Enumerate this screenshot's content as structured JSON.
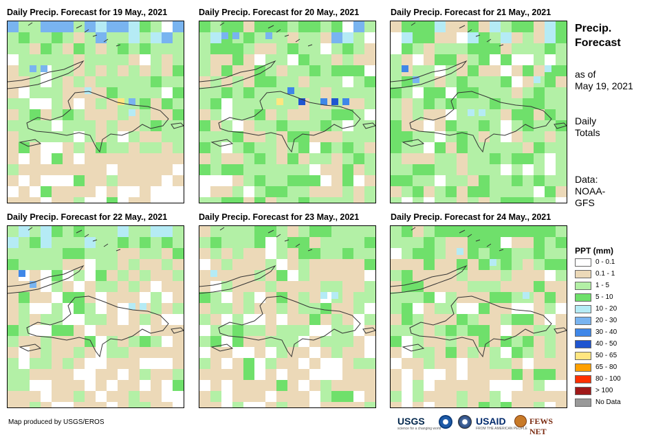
{
  "panels": [
    {
      "title": "Daily Precip. Forecast for 19 May., 2021"
    },
    {
      "title": "Daily Precip. Forecast for 20 May., 2021"
    },
    {
      "title": "Daily Precip. Forecast for 21 May., 2021"
    },
    {
      "title": "Daily Precip. Forecast for 22 May., 2021"
    },
    {
      "title": "Daily Precip. Forecast for 23 May., 2021"
    },
    {
      "title": "Daily Precip. Forecast for 24 May., 2021"
    }
  ],
  "sidebar": {
    "title_line1": "Precip.",
    "title_line2": "Forecast",
    "asof_line1": "as of",
    "asof_line2": "May 19, 2021",
    "daily_line1": "Daily",
    "daily_line2": "Totals",
    "data_line1": "Data:",
    "data_line2": "NOAA-",
    "data_line3": "GFS"
  },
  "legend": {
    "title": "PPT (mm)",
    "items": [
      {
        "label": "0 - 0.1",
        "color": "#ffffff"
      },
      {
        "label": "0.1 - 1",
        "color": "#ecd9b8"
      },
      {
        "label": "1 - 5",
        "color": "#b3f0a6"
      },
      {
        "label": "5 - 10",
        "color": "#6fe06b"
      },
      {
        "label": "10 - 20",
        "color": "#b5ebf5"
      },
      {
        "label": "20 - 30",
        "color": "#79b4f0"
      },
      {
        "label": "30 - 40",
        "color": "#3f87e8"
      },
      {
        "label": "40 - 50",
        "color": "#1f55d0"
      },
      {
        "label": "50 - 65",
        "color": "#ffe680"
      },
      {
        "label": "65 - 80",
        "color": "#ffa000"
      },
      {
        "label": "80 - 100",
        "color": "#ff3000"
      },
      {
        "label": "> 100",
        "color": "#a01818"
      },
      {
        "label": "No Data",
        "color": "#999999"
      }
    ]
  },
  "footer": {
    "credit": "Map produced by USGS/EROS",
    "logo_usgs": "USGS",
    "logo_usgs_sub": "science for a changing world",
    "logo_usaid": "USAID",
    "logo_usaid_sub": "FROM THE AMERICAN PEOPLE",
    "logo_fews": "FEWS NET"
  }
}
